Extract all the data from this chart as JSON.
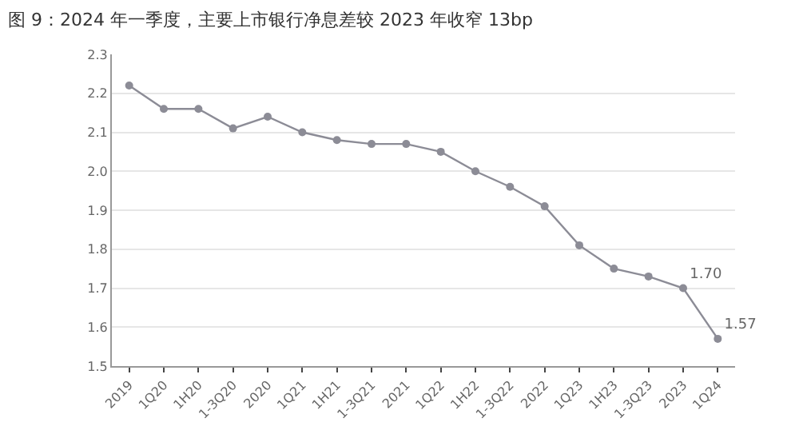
{
  "chart_data": {
    "type": "line",
    "title": "图 9：2024 年一季度，主要上市银行净息差较 2023 年收窄 13bp",
    "categories": [
      "2019",
      "1Q20",
      "1H20",
      "1-3Q20",
      "2020",
      "1Q21",
      "1H21",
      "1-3Q21",
      "2021",
      "1Q22",
      "1H22",
      "1-3Q22",
      "2022",
      "1Q23",
      "1H23",
      "1-3Q23",
      "2023",
      "1Q24"
    ],
    "series": [
      {
        "color": "#8c8c96",
        "values": [
          2.22,
          2.16,
          2.16,
          2.11,
          2.14,
          2.1,
          2.08,
          2.07,
          2.07,
          2.05,
          2.0,
          1.96,
          1.91,
          1.81,
          1.75,
          1.73,
          1.7,
          1.57
        ],
        "value_labels": [
          null,
          null,
          null,
          null,
          null,
          null,
          null,
          null,
          null,
          null,
          null,
          null,
          null,
          null,
          null,
          null,
          "1.70",
          "1.57"
        ]
      }
    ],
    "ylim": [
      1.5,
      2.3
    ],
    "yticks": [
      1.5,
      1.6,
      1.7,
      1.8,
      1.9,
      {
        "value": 2.0,
        "label": "2.0"
      },
      2.1,
      2.2,
      2.3
    ],
    "grid": "y",
    "legend": false,
    "marker": "circle",
    "line_style": "solid"
  }
}
